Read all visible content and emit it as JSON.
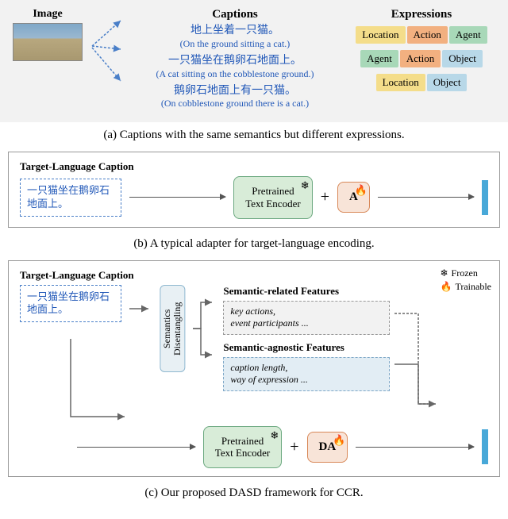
{
  "panel_a": {
    "image_label": "Image",
    "captions_header": "Captions",
    "expressions_header": "Expressions",
    "captions": [
      {
        "zh": "地上坐着一只猫。",
        "en": "(On the ground sitting a cat.)"
      },
      {
        "zh": "一只猫坐在鹅卵石地面上。",
        "en": "(A cat sitting on the cobblestone ground.)"
      },
      {
        "zh": "鹅卵石地面上有一只猫。",
        "en": "(On cobblestone ground there is a cat.)"
      }
    ],
    "exp_rows": [
      [
        {
          "text": "Location",
          "cls": "exp-location"
        },
        {
          "text": "Action",
          "cls": "exp-action"
        },
        {
          "text": "Agent",
          "cls": "exp-agent"
        }
      ],
      [
        {
          "text": "Agent",
          "cls": "exp-agent"
        },
        {
          "text": "Action",
          "cls": "exp-action"
        },
        {
          "text": "Object",
          "cls": "exp-object"
        }
      ],
      [
        {
          "text": "Location",
          "cls": "exp-location"
        },
        {
          "text": "Object",
          "cls": "exp-object"
        }
      ]
    ],
    "caption": "(a) Captions with the same semantics but different expressions."
  },
  "panel_b": {
    "tl_label": "Target-Language Caption",
    "tl_text": "一只猫坐在鹅卵石地面上。",
    "encoder": "Pretrained\nText Encoder",
    "adapter": "A",
    "caption": "(b) A typical adapter for target-language encoding."
  },
  "panel_c": {
    "tl_label": "Target-Language Caption",
    "tl_text": "一只猫坐在鹅卵石地面上。",
    "disentangle": "Semantics\nDisentangling",
    "sr_label": "Semantic-related Features",
    "sr_text": "key actions,\nevent participants ...",
    "sa_label": "Semantic-agnostic Features",
    "sa_text": "caption length,\nway of expression ...",
    "encoder": "Pretrained\nText Encoder",
    "adapter": "DA",
    "legend_frozen": "Frozen",
    "legend_trainable": "Trainable",
    "caption": "(c) Our proposed DASD framework for CCR."
  },
  "icons": {
    "snowflake": "❄",
    "fire": "🔥"
  },
  "colors": {
    "blue_text": "#2158b8",
    "encoder_bg": "#d8ecd8",
    "adapter_bg": "#f8e4d8",
    "output_bar": "#48a8d8"
  }
}
